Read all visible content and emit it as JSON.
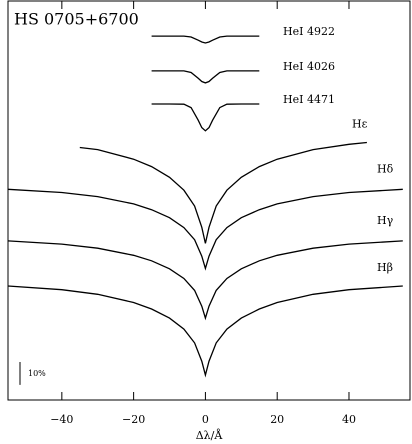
{
  "chart_data": {
    "type": "line",
    "title": "HS 0705+6700",
    "x_label": "Δλ/Å",
    "xlim": [
      -55,
      57
    ],
    "xticks": [
      {
        "value": -40,
        "label": "−40"
      },
      {
        "value": -20,
        "label": "−20"
      },
      0,
      20,
      40
    ],
    "ylim": [
      0,
      1.74
    ],
    "scale_bar": {
      "value": 0.1,
      "label": "10%"
    },
    "series": [
      {
        "name": "HeI 4922",
        "color": "#000000",
        "x": [
          -15,
          -10,
          -6,
          -4,
          -2,
          -1,
          0,
          1,
          2,
          4,
          6,
          10,
          15
        ],
        "values": [
          1.587,
          1.587,
          1.587,
          1.583,
          1.569,
          1.561,
          1.557,
          1.561,
          1.569,
          1.583,
          1.587,
          1.587,
          1.587
        ]
      },
      {
        "name": "HeI 4026",
        "color": "#000000",
        "x": [
          -15,
          -10,
          -6,
          -4,
          -2,
          -1,
          0,
          1,
          2,
          4,
          6,
          10,
          15
        ],
        "values": [
          1.435,
          1.435,
          1.435,
          1.428,
          1.403,
          1.389,
          1.383,
          1.389,
          1.403,
          1.428,
          1.435,
          1.435,
          1.435
        ]
      },
      {
        "name": "HeI 4471",
        "color": "#000000",
        "x": [
          -15,
          -10,
          -6,
          -4,
          -2,
          -1,
          0,
          1,
          2,
          4,
          6,
          10,
          15
        ],
        "values": [
          1.291,
          1.291,
          1.29,
          1.275,
          1.22,
          1.188,
          1.174,
          1.188,
          1.22,
          1.275,
          1.29,
          1.291,
          1.291
        ]
      },
      {
        "name": "Hε",
        "color": "#000000",
        "x": [
          -35,
          -30,
          -20,
          -15,
          -10,
          -6,
          -3,
          -1,
          0,
          1,
          3,
          6,
          10,
          15,
          20,
          30,
          40,
          45
        ],
        "values": [
          1.101,
          1.092,
          1.05,
          1.018,
          0.971,
          0.915,
          0.846,
          0.753,
          0.683,
          0.753,
          0.846,
          0.915,
          0.971,
          1.018,
          1.05,
          1.092,
          1.115,
          1.123
        ]
      },
      {
        "name": "Hδ",
        "color": "#000000",
        "x": [
          -55,
          -40,
          -30,
          -20,
          -15,
          -10,
          -6,
          -3,
          -1,
          0,
          1,
          3,
          6,
          10,
          15,
          20,
          30,
          40,
          55
        ],
        "values": [
          0.919,
          0.905,
          0.887,
          0.855,
          0.83,
          0.795,
          0.752,
          0.699,
          0.627,
          0.574,
          0.627,
          0.699,
          0.752,
          0.795,
          0.83,
          0.855,
          0.887,
          0.905,
          0.919
        ]
      },
      {
        "name": "Hγ",
        "color": "#000000",
        "x": [
          -55,
          -40,
          -30,
          -20,
          -15,
          -10,
          -6,
          -3,
          -1,
          0,
          1,
          3,
          6,
          10,
          15,
          20,
          30,
          40,
          55
        ],
        "values": [
          0.694,
          0.68,
          0.662,
          0.631,
          0.607,
          0.572,
          0.53,
          0.478,
          0.409,
          0.357,
          0.409,
          0.478,
          0.53,
          0.572,
          0.607,
          0.631,
          0.662,
          0.68,
          0.694
        ]
      },
      {
        "name": "Hβ",
        "color": "#000000",
        "x": [
          -55,
          -40,
          -30,
          -20,
          -15,
          -10,
          -6,
          -3,
          -1,
          0,
          1,
          3,
          6,
          10,
          15,
          20,
          30,
          40,
          55
        ],
        "values": [
          0.497,
          0.481,
          0.461,
          0.425,
          0.397,
          0.357,
          0.309,
          0.249,
          0.169,
          0.109,
          0.169,
          0.249,
          0.309,
          0.357,
          0.397,
          0.425,
          0.461,
          0.481,
          0.497
        ]
      }
    ]
  }
}
